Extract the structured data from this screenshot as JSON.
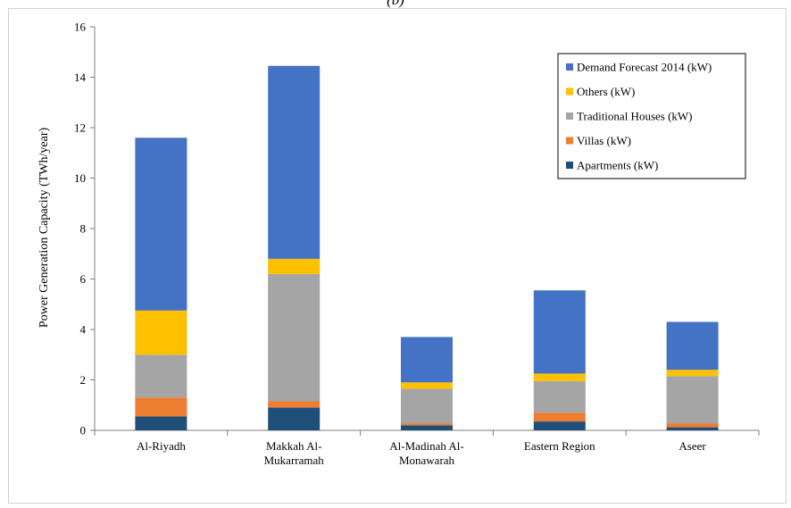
{
  "caption": "(b)",
  "chart_data": {
    "type": "bar",
    "stacked": true,
    "title": "",
    "xlabel": "",
    "ylabel": "Power Generation Capacity (TWh/year)",
    "ylim": [
      0,
      16
    ],
    "yticks": [
      0,
      2,
      4,
      6,
      8,
      10,
      12,
      14,
      16
    ],
    "grid": false,
    "legend_position": "top-right",
    "categories": [
      [
        "Al-Riyadh"
      ],
      [
        "Makkah Al-",
        "Mukarramah"
      ],
      [
        "Al-Madinah Al-",
        "Monawarah"
      ],
      [
        "Eastern Region"
      ],
      [
        "Aseer"
      ]
    ],
    "series": [
      {
        "name": "Apartments (kW)",
        "color": "#1f4e79",
        "values": [
          0.55,
          0.9,
          0.2,
          0.35,
          0.12
        ]
      },
      {
        "name": "Villas (kW)",
        "color": "#ed7d31",
        "values": [
          0.75,
          0.25,
          0.08,
          0.35,
          0.16
        ]
      },
      {
        "name": "Traditional Houses (kW)",
        "color": "#a5a5a5",
        "values": [
          1.7,
          5.05,
          1.37,
          1.25,
          1.87
        ]
      },
      {
        "name": "Others (kW)",
        "color": "#ffc000",
        "values": [
          1.75,
          0.6,
          0.25,
          0.3,
          0.25
        ]
      },
      {
        "name": "Demand Forecast 2014 (kW)",
        "color": "#4472c4",
        "values": [
          6.85,
          7.65,
          1.8,
          3.3,
          1.9
        ]
      }
    ]
  }
}
